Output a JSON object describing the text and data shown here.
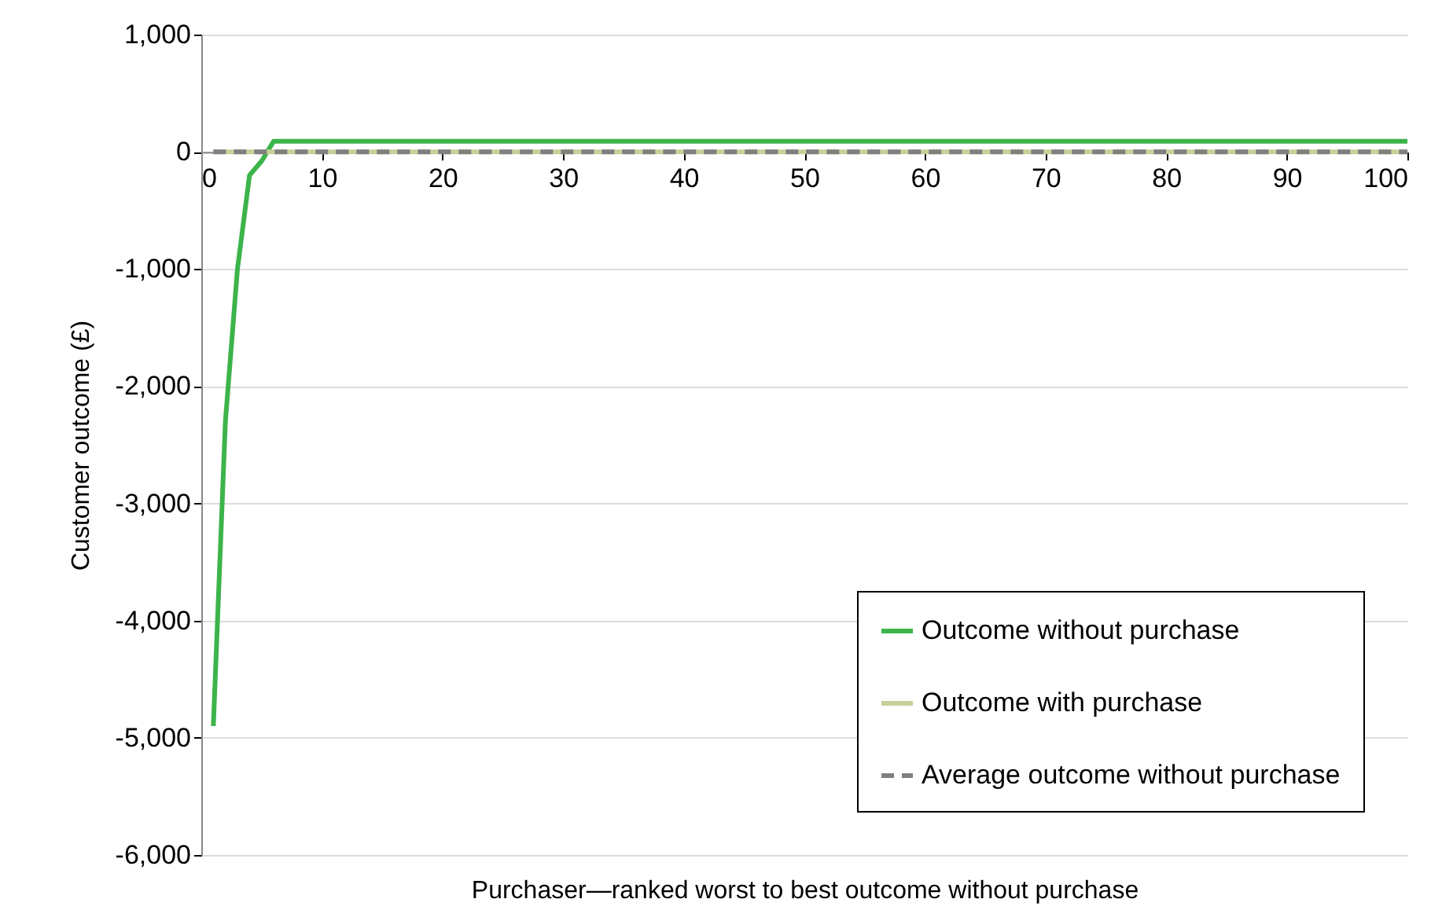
{
  "chart_data": {
    "type": "line",
    "xlabel": "Purchaser—ranked  worst to best outcome without purchase",
    "ylabel": "Customer outcome (£)",
    "xlim": [
      0,
      100
    ],
    "xticks": [
      0,
      10,
      20,
      30,
      40,
      50,
      60,
      70,
      80,
      90,
      100
    ],
    "ylim": [
      -6000,
      1000
    ],
    "yticks": [
      {
        "value": -6000,
        "label": "-6,000"
      },
      {
        "value": -5000,
        "label": "-5,000"
      },
      {
        "value": -4000,
        "label": "-4,000"
      },
      {
        "value": -3000,
        "label": "-3,000"
      },
      {
        "value": -2000,
        "label": "-2,000"
      },
      {
        "value": -1000,
        "label": "-1,000"
      },
      0,
      {
        "value": 1000,
        "label": "1,000"
      }
    ],
    "grid": "y",
    "legend": "bottom right",
    "marker": "none",
    "series": [
      {
        "name": "Outcome without purchase",
        "color": "#3cb44b",
        "line_style": "solid",
        "x": [
          1,
          2,
          3,
          4,
          5,
          6,
          100
        ],
        "values": [
          -4900,
          -2300,
          -1000,
          -200,
          -80,
          90,
          90
        ]
      },
      {
        "name": "Outcome with purchase",
        "color": "#c8d09a",
        "line_style": "solid",
        "x": [
          1,
          100
        ],
        "values": [
          0,
          0
        ]
      },
      {
        "name": "Average outcome without purchase",
        "color": "#7f7f7f",
        "line_style": "dashed",
        "x": [
          1,
          100
        ],
        "values": [
          0,
          0
        ]
      }
    ]
  }
}
